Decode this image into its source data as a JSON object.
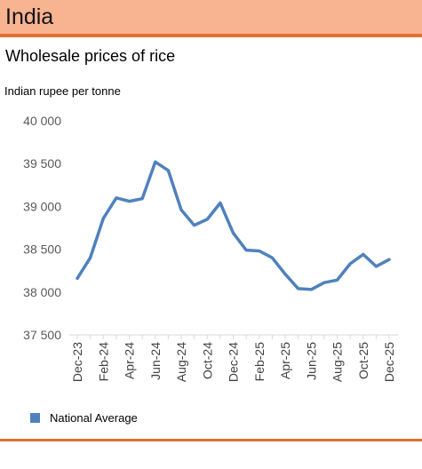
{
  "header": {
    "country": "India"
  },
  "chart_data": {
    "type": "line",
    "title": "Wholesale prices of rice",
    "ylabel": "Indian rupee per tonne",
    "xlabel": "",
    "ylim": [
      37500,
      40000
    ],
    "y_ticks": [
      40000,
      39500,
      39000,
      38500,
      38000,
      37500
    ],
    "y_tick_labels": [
      "40 000",
      "39 500",
      "39 000",
      "38 500",
      "38 000",
      "37 500"
    ],
    "categories": [
      "Dec-23",
      "Jan-24",
      "Feb-24",
      "Mar-24",
      "Apr-24",
      "May-24",
      "Jun-24",
      "Jul-24",
      "Aug-24",
      "Sep-24",
      "Oct-24",
      "Nov-24",
      "Dec-24",
      "Jan-25",
      "Feb-25",
      "Mar-25",
      "Apr-25",
      "May-25",
      "Jun-25",
      "Jul-25",
      "Aug-25",
      "Sep-25",
      "Oct-25",
      "Nov-25",
      "Dec-25"
    ],
    "tick_labels": [
      "Dec-23",
      "",
      "Feb-24",
      "",
      "Apr-24",
      "",
      "Jun-24",
      "",
      "Aug-24",
      "",
      "Oct-24",
      "",
      "Dec-24",
      "",
      "Feb-25",
      "",
      "Apr-25",
      "",
      "Jun-25",
      "",
      "Aug-25",
      "",
      "Oct-25",
      "",
      "Dec-25"
    ],
    "series": [
      {
        "name": "National Average",
        "color": "#4f81bd",
        "values": [
          38160,
          38400,
          38860,
          39100,
          39060,
          39090,
          39520,
          39420,
          38960,
          38780,
          38850,
          39040,
          38690,
          38490,
          38480,
          38400,
          38210,
          38040,
          38030,
          38110,
          38140,
          38330,
          38440,
          38300,
          38380
        ]
      }
    ],
    "legend_position": "bottom-left",
    "grid": false
  }
}
